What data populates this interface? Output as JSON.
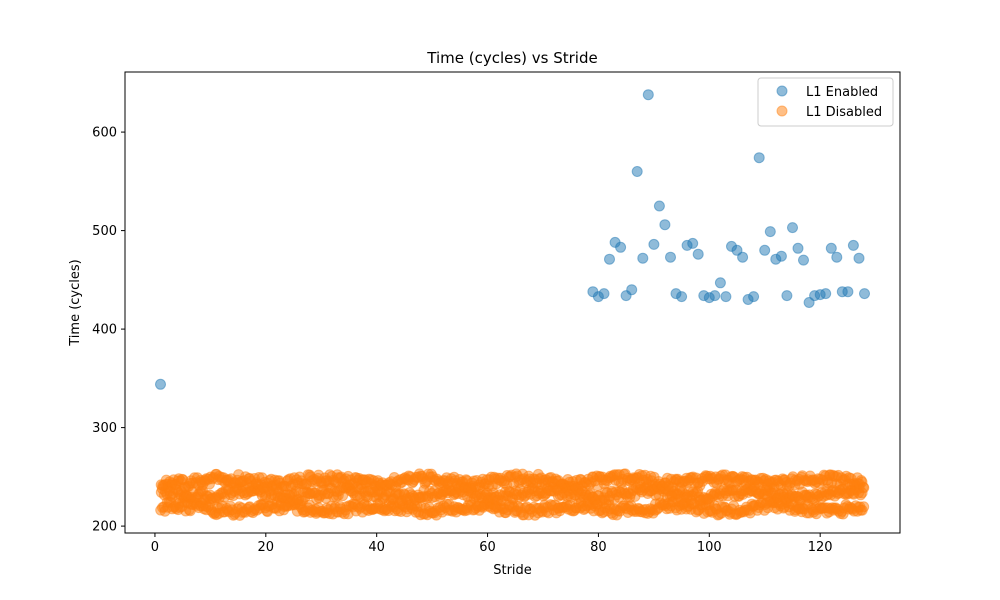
{
  "chart_data": {
    "type": "scatter",
    "title": "Time (cycles) vs Stride",
    "xlabel": "Stride",
    "ylabel": "Time (cycles)",
    "xlim": [
      -5.4,
      134.4
    ],
    "ylim": [
      193,
      661
    ],
    "xticks": [
      0,
      20,
      40,
      60,
      80,
      100,
      120
    ],
    "yticks": [
      200,
      300,
      400,
      500,
      600
    ],
    "grid": false,
    "legend_position": "top-right",
    "marker_alpha": 0.5,
    "series": [
      {
        "name": "L1 Enabled",
        "color": "#1f77b4",
        "points": [
          [
            1,
            344
          ],
          [
            79,
            438
          ],
          [
            80,
            433
          ],
          [
            81,
            436
          ],
          [
            82,
            471
          ],
          [
            83,
            488
          ],
          [
            84,
            483
          ],
          [
            85,
            434
          ],
          [
            86,
            440
          ],
          [
            87,
            560
          ],
          [
            88,
            472
          ],
          [
            89,
            638
          ],
          [
            90,
            486
          ],
          [
            91,
            525
          ],
          [
            92,
            506
          ],
          [
            93,
            473
          ],
          [
            94,
            436
          ],
          [
            95,
            433
          ],
          [
            96,
            485
          ],
          [
            97,
            487
          ],
          [
            98,
            476
          ],
          [
            99,
            434
          ],
          [
            100,
            432
          ],
          [
            101,
            434
          ],
          [
            102,
            447
          ],
          [
            103,
            433
          ],
          [
            104,
            484
          ],
          [
            105,
            480
          ],
          [
            106,
            473
          ],
          [
            107,
            430
          ],
          [
            108,
            433
          ],
          [
            109,
            574
          ],
          [
            110,
            480
          ],
          [
            111,
            499
          ],
          [
            112,
            471
          ],
          [
            113,
            474
          ],
          [
            114,
            434
          ],
          [
            115,
            503
          ],
          [
            116,
            482
          ],
          [
            117,
            470
          ],
          [
            118,
            427
          ],
          [
            119,
            434
          ],
          [
            120,
            435
          ],
          [
            121,
            436
          ],
          [
            122,
            482
          ],
          [
            123,
            473
          ],
          [
            124,
            438
          ],
          [
            125,
            438
          ],
          [
            126,
            485
          ],
          [
            127,
            472
          ],
          [
            128,
            436
          ]
        ]
      },
      {
        "name": "L1 Disabled",
        "color": "#ff7f0e",
        "x_range": [
          1,
          128
        ],
        "y_levels": [
          218,
          233,
          246
        ],
        "y_jitter": 5
      }
    ]
  }
}
